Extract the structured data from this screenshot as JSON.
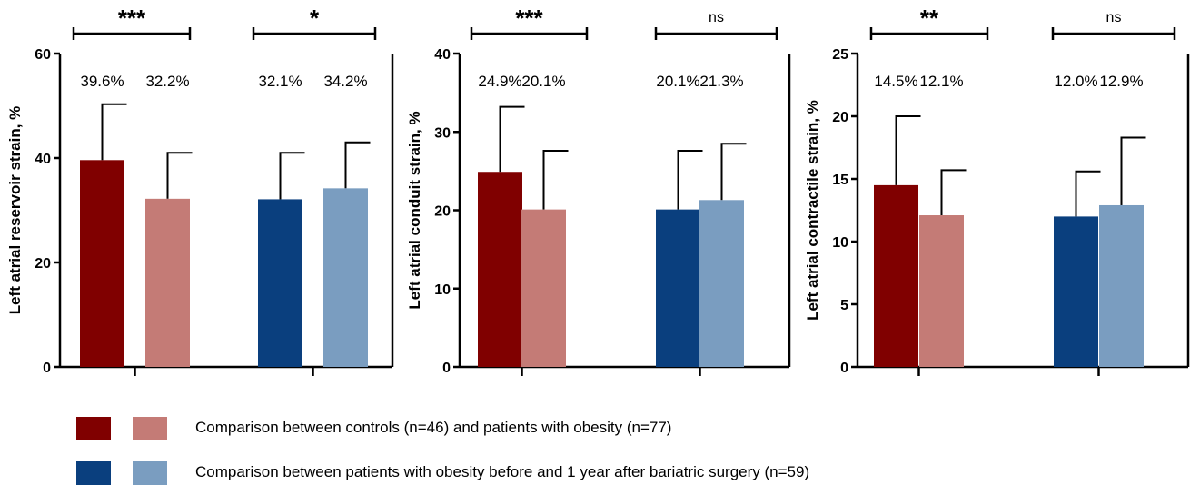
{
  "chart_data": [
    {
      "type": "bar",
      "ylabel": "Left atrial reservoir strain, %",
      "ylim": [
        0,
        60
      ],
      "yticks": [
        0,
        20,
        40,
        60
      ],
      "groups": [
        {
          "significance": "***",
          "bars": [
            {
              "value": 39.6,
              "error_upper": 50.3,
              "label": "39.6%",
              "color": "#800000"
            },
            {
              "value": 32.2,
              "error_upper": 41.0,
              "label": "32.2%",
              "color": "#c47b76"
            }
          ]
        },
        {
          "significance": "*",
          "bars": [
            {
              "value": 32.1,
              "error_upper": 41.0,
              "label": "32.1%",
              "color": "#0a3f7e"
            },
            {
              "value": 34.2,
              "error_upper": 43.0,
              "label": "34.2%",
              "color": "#7a9dc0"
            }
          ]
        }
      ]
    },
    {
      "type": "bar",
      "ylabel": "Left atrial conduit strain, %",
      "ylim": [
        0,
        40
      ],
      "yticks": [
        0,
        10,
        20,
        30,
        40
      ],
      "groups": [
        {
          "significance": "***",
          "bars": [
            {
              "value": 24.9,
              "error_upper": 33.2,
              "label": "24.9%",
              "color": "#800000"
            },
            {
              "value": 20.1,
              "error_upper": 27.6,
              "label": "20.1%",
              "color": "#c47b76"
            }
          ]
        },
        {
          "significance": "ns",
          "bars": [
            {
              "value": 20.1,
              "error_upper": 27.6,
              "label": "20.1%",
              "color": "#0a3f7e"
            },
            {
              "value": 21.3,
              "error_upper": 28.5,
              "label": "21.3%",
              "color": "#7a9dc0"
            }
          ]
        }
      ]
    },
    {
      "type": "bar",
      "ylabel": "Left atrial contractile strain, %",
      "ylim": [
        0,
        25
      ],
      "yticks": [
        0,
        5,
        10,
        15,
        20,
        25
      ],
      "groups": [
        {
          "significance": "**",
          "bars": [
            {
              "value": 14.5,
              "error_upper": 20.0,
              "label": "14.5%",
              "color": "#800000"
            },
            {
              "value": 12.1,
              "error_upper": 15.7,
              "label": "12.1%",
              "color": "#c47b76"
            }
          ]
        },
        {
          "significance": "ns",
          "bars": [
            {
              "value": 12.0,
              "error_upper": 15.6,
              "label": "12.0%",
              "color": "#0a3f7e"
            },
            {
              "value": 12.9,
              "error_upper": 18.3,
              "label": "12.9%",
              "color": "#7a9dc0"
            }
          ]
        }
      ]
    }
  ],
  "legend": [
    {
      "text": "Comparison between controls (n=46) and patients with obesity (n=77)",
      "colors": [
        "#800000",
        "#c47b76"
      ]
    },
    {
      "text": "Comparison between patients with obesity before and 1 year after bariatric surgery (n=59)",
      "colors": [
        "#0a3f7e",
        "#7a9dc0"
      ]
    }
  ]
}
